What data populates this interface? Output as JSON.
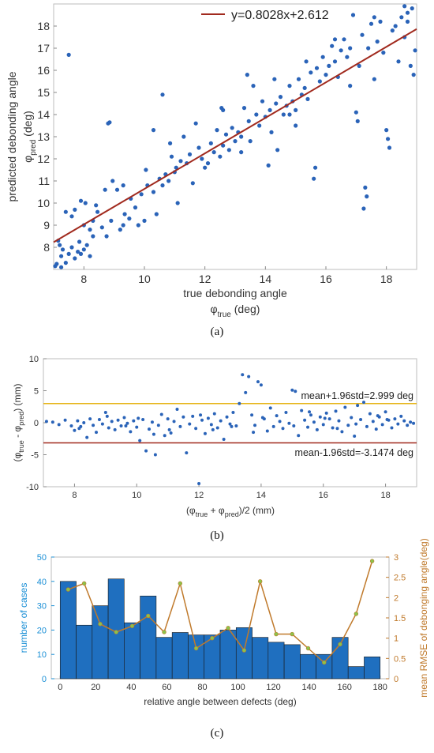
{
  "chart_data": [
    {
      "panel_label": "(a)",
      "type": "scatter",
      "xlabel": "true debonding angle",
      "xsymbol": "φ",
      "xsub": "true",
      "xunit": " (deg)",
      "ylabel": "predicted debonding angle",
      "ysymbol": "φ",
      "ysub": "pred",
      "yunit": " (deg)",
      "xlim": [
        7,
        19
      ],
      "ylim": [
        7,
        19
      ],
      "xticks": [
        "8",
        "10",
        "12",
        "14",
        "16",
        "18"
      ],
      "yticks": [
        "8",
        "9",
        "10",
        "11",
        "12",
        "13",
        "14",
        "15",
        "16",
        "17",
        "18"
      ],
      "legend_label": "y=0.8028x+2.612",
      "legend_position": "top-right",
      "fit": {
        "slope": 0.8028,
        "intercept": 2.612
      },
      "point_color": "#2a63b8",
      "line_color": "#a12a1e",
      "points": [
        [
          7.05,
          7.15
        ],
        [
          7.1,
          7.25
        ],
        [
          7.2,
          8.1
        ],
        [
          7.25,
          7.6
        ],
        [
          7.3,
          7.9
        ],
        [
          7.4,
          7.3
        ],
        [
          7.5,
          7.7
        ],
        [
          7.6,
          8.0
        ],
        [
          7.7,
          7.5
        ],
        [
          7.8,
          7.8
        ],
        [
          7.85,
          8.25
        ],
        [
          7.9,
          7.7
        ],
        [
          8.0,
          7.9
        ],
        [
          8.1,
          8.1
        ],
        [
          8.2,
          7.6
        ],
        [
          8.3,
          8.5
        ],
        [
          7.5,
          16.7
        ],
        [
          7.6,
          9.4
        ],
        [
          7.7,
          9.7
        ],
        [
          7.9,
          10.1
        ],
        [
          8.0,
          9.0
        ],
        [
          8.05,
          10.0
        ],
        [
          8.2,
          8.8
        ],
        [
          8.3,
          9.2
        ],
        [
          8.45,
          9.6
        ],
        [
          8.6,
          8.9
        ],
        [
          8.75,
          8.5
        ],
        [
          8.9,
          9.2
        ],
        [
          8.7,
          10.6
        ],
        [
          8.95,
          11.0
        ],
        [
          8.8,
          13.6
        ],
        [
          8.85,
          13.65
        ],
        [
          7.4,
          9.6
        ],
        [
          7.15,
          8.3
        ],
        [
          7.25,
          7.1
        ],
        [
          9.1,
          10.6
        ],
        [
          9.2,
          8.8
        ],
        [
          9.3,
          9.0
        ],
        [
          9.35,
          9.5
        ],
        [
          9.5,
          9.3
        ],
        [
          9.55,
          10.2
        ],
        [
          9.7,
          9.8
        ],
        [
          9.8,
          9.0
        ],
        [
          9.9,
          10.4
        ],
        [
          10.0,
          9.2
        ],
        [
          10.05,
          11.5
        ],
        [
          10.1,
          10.8
        ],
        [
          10.3,
          10.5
        ],
        [
          10.4,
          9.5
        ],
        [
          10.5,
          11.1
        ],
        [
          10.6,
          10.8
        ],
        [
          10.6,
          14.9
        ],
        [
          10.7,
          11.3
        ],
        [
          10.8,
          11.0
        ],
        [
          10.85,
          12.7
        ],
        [
          10.9,
          12.1
        ],
        [
          11.0,
          11.4
        ],
        [
          11.05,
          11.6
        ],
        [
          11.2,
          11.9
        ],
        [
          11.3,
          13.0
        ],
        [
          11.4,
          11.8
        ],
        [
          11.5,
          12.2
        ],
        [
          11.6,
          10.9
        ],
        [
          11.7,
          13.6
        ],
        [
          11.8,
          12.5
        ],
        [
          11.9,
          12.0
        ],
        [
          12.0,
          11.6
        ],
        [
          12.1,
          11.8
        ],
        [
          12.2,
          12.7
        ],
        [
          12.3,
          12.3
        ],
        [
          12.4,
          13.3
        ],
        [
          12.5,
          12.1
        ],
        [
          12.55,
          14.3
        ],
        [
          12.6,
          12.6
        ],
        [
          12.7,
          13.1
        ],
        [
          12.8,
          12.4
        ],
        [
          12.9,
          13.4
        ],
        [
          13.0,
          12.8
        ],
        [
          13.1,
          13.2
        ],
        [
          13.2,
          13.0
        ],
        [
          13.3,
          14.3
        ],
        [
          13.4,
          15.8
        ],
        [
          13.45,
          13.7
        ],
        [
          13.5,
          12.8
        ],
        [
          13.6,
          15.3
        ],
        [
          13.7,
          14.0
        ],
        [
          13.8,
          13.5
        ],
        [
          13.9,
          14.6
        ],
        [
          14.0,
          13.9
        ],
        [
          14.1,
          11.7
        ],
        [
          14.15,
          14.2
        ],
        [
          14.2,
          13.2
        ],
        [
          14.3,
          15.6
        ],
        [
          14.35,
          14.5
        ],
        [
          14.4,
          12.4
        ],
        [
          14.5,
          14.8
        ],
        [
          14.6,
          14.0
        ],
        [
          14.7,
          14.4
        ],
        [
          14.8,
          15.3
        ],
        [
          14.9,
          14.6
        ],
        [
          15.0,
          14.2
        ],
        [
          15.1,
          15.6
        ],
        [
          15.2,
          14.9
        ],
        [
          15.3,
          15.2
        ],
        [
          15.35,
          16.4
        ],
        [
          15.4,
          14.7
        ],
        [
          15.5,
          15.9
        ],
        [
          15.6,
          11.1
        ],
        [
          15.65,
          11.6
        ],
        [
          15.7,
          16.1
        ],
        [
          15.8,
          15.5
        ],
        [
          15.9,
          16.6
        ],
        [
          16.0,
          15.8
        ],
        [
          16.1,
          16.2
        ],
        [
          16.2,
          17.1
        ],
        [
          16.3,
          16.4
        ],
        [
          16.4,
          15.7
        ],
        [
          16.5,
          16.9
        ],
        [
          16.6,
          17.4
        ],
        [
          16.7,
          16.6
        ],
        [
          16.8,
          17.0
        ],
        [
          16.9,
          18.5
        ],
        [
          17.0,
          14.1
        ],
        [
          17.05,
          13.7
        ],
        [
          17.1,
          16.2
        ],
        [
          17.2,
          17.6
        ],
        [
          17.3,
          10.7
        ],
        [
          17.35,
          10.3
        ],
        [
          17.25,
          9.75
        ],
        [
          17.4,
          17.0
        ],
        [
          17.5,
          18.1
        ],
        [
          17.6,
          15.6
        ],
        [
          17.7,
          17.3
        ],
        [
          17.8,
          18.2
        ],
        [
          17.9,
          16.8
        ],
        [
          18.0,
          13.3
        ],
        [
          18.05,
          12.9
        ],
        [
          18.1,
          12.5
        ],
        [
          18.2,
          17.8
        ],
        [
          18.3,
          18.0
        ],
        [
          18.4,
          16.4
        ],
        [
          18.5,
          18.4
        ],
        [
          18.6,
          17.5
        ],
        [
          18.7,
          18.2
        ],
        [
          18.8,
          16.2
        ],
        [
          18.85,
          18.8
        ],
        [
          18.9,
          15.8
        ],
        [
          18.95,
          16.9
        ],
        [
          18.7,
          18.6
        ],
        [
          18.6,
          18.9
        ],
        [
          16.3,
          17.4
        ],
        [
          15.0,
          13.5
        ],
        [
          13.2,
          12.3
        ],
        [
          11.1,
          10.0
        ],
        [
          12.6,
          14.2
        ],
        [
          14.8,
          14.0
        ],
        [
          16.8,
          15.3
        ],
        [
          10.3,
          13.3
        ],
        [
          9.3,
          10.8
        ],
        [
          17.6,
          18.4
        ],
        [
          8.4,
          9.9
        ]
      ]
    },
    {
      "panel_label": "(b)",
      "type": "scatter",
      "xlabel": "(φ",
      "xsub1": "true",
      "xmid": " + φ",
      "xsub2": "pred",
      "xend": ")/2 (mm)",
      "ylabel": "(φ",
      "ysub1": "true",
      "ymid": " - φ",
      "ysub2": "pred",
      "yend": ") (mm)",
      "xlim": [
        7,
        19
      ],
      "ylim": [
        -10,
        10
      ],
      "xticks": [
        "8",
        "10",
        "12",
        "14",
        "16",
        "18"
      ],
      "yticks": [
        "-10",
        "-5",
        "0",
        "5",
        "10"
      ],
      "upper_line": {
        "value": 2.999,
        "label": "mean+1.96std=2.999 deg",
        "color": "#e6b418"
      },
      "lower_line": {
        "value": -3.1474,
        "label": "mean-1.96std=-3.1474 deg",
        "color": "#a12a1e"
      },
      "point_color": "#2a63b8",
      "points": [
        [
          7.1,
          0.2
        ],
        [
          7.3,
          0.1
        ],
        [
          7.5,
          -0.3
        ],
        [
          7.7,
          0.4
        ],
        [
          7.9,
          -0.5
        ],
        [
          8.0,
          -1.2
        ],
        [
          8.1,
          0.3
        ],
        [
          8.2,
          -0.6
        ],
        [
          8.3,
          0.0
        ],
        [
          8.4,
          -2.3
        ],
        [
          8.5,
          0.6
        ],
        [
          8.6,
          -0.4
        ],
        [
          8.7,
          -1.5
        ],
        [
          8.8,
          0.5
        ],
        [
          8.9,
          -0.2
        ],
        [
          9.0,
          1.6
        ],
        [
          9.1,
          -0.8
        ],
        [
          9.2,
          0.2
        ],
        [
          9.3,
          -1.1
        ],
        [
          9.4,
          0.4
        ],
        [
          9.5,
          -0.5
        ],
        [
          9.6,
          0.8
        ],
        [
          9.7,
          -0.1
        ],
        [
          9.8,
          -1.4
        ],
        [
          9.9,
          0.3
        ],
        [
          10.0,
          -0.7
        ],
        [
          10.1,
          -2.8
        ],
        [
          10.2,
          0.5
        ],
        [
          10.3,
          -4.4
        ],
        [
          10.4,
          -1.0
        ],
        [
          10.5,
          0.1
        ],
        [
          10.6,
          -5.0
        ],
        [
          10.7,
          -0.4
        ],
        [
          10.8,
          1.3
        ],
        [
          10.9,
          -2.0
        ],
        [
          11.0,
          0.6
        ],
        [
          11.1,
          -1.6
        ],
        [
          11.2,
          0.2
        ],
        [
          11.3,
          2.1
        ],
        [
          11.4,
          -0.6
        ],
        [
          11.5,
          0.9
        ],
        [
          11.6,
          -4.7
        ],
        [
          11.7,
          -0.2
        ],
        [
          11.8,
          1.0
        ],
        [
          11.9,
          -0.9
        ],
        [
          12.0,
          -9.5
        ],
        [
          12.1,
          0.4
        ],
        [
          12.2,
          -1.7
        ],
        [
          12.3,
          0.7
        ],
        [
          12.4,
          -0.3
        ],
        [
          12.5,
          1.4
        ],
        [
          12.6,
          -0.8
        ],
        [
          12.7,
          0.3
        ],
        [
          12.8,
          -2.6
        ],
        [
          12.9,
          0.9
        ],
        [
          13.0,
          -0.2
        ],
        [
          13.1,
          1.6
        ],
        [
          13.2,
          -0.5
        ],
        [
          13.3,
          3.0
        ],
        [
          13.4,
          7.5
        ],
        [
          13.5,
          4.7
        ],
        [
          13.6,
          7.2
        ],
        [
          13.7,
          1.2
        ],
        [
          13.8,
          -0.4
        ],
        [
          13.9,
          6.4
        ],
        [
          14.0,
          5.9
        ],
        [
          14.1,
          0.6
        ],
        [
          14.2,
          -1.3
        ],
        [
          14.3,
          2.3
        ],
        [
          14.4,
          -0.6
        ],
        [
          14.5,
          1.1
        ],
        [
          14.6,
          0.2
        ],
        [
          14.7,
          -0.9
        ],
        [
          14.8,
          1.6
        ],
        [
          14.9,
          -0.1
        ],
        [
          15.0,
          5.1
        ],
        [
          15.1,
          4.9
        ],
        [
          15.2,
          -2.0
        ],
        [
          15.3,
          1.9
        ],
        [
          15.4,
          0.4
        ],
        [
          15.5,
          -0.7
        ],
        [
          15.6,
          1.2
        ],
        [
          15.7,
          0.1
        ],
        [
          15.8,
          -1.1
        ],
        [
          15.9,
          0.9
        ],
        [
          16.0,
          -0.3
        ],
        [
          16.1,
          1.5
        ],
        [
          16.2,
          0.6
        ],
        [
          16.3,
          -0.8
        ],
        [
          16.4,
          1.8
        ],
        [
          16.5,
          0.3
        ],
        [
          16.6,
          -1.4
        ],
        [
          16.7,
          2.4
        ],
        [
          16.8,
          -0.4
        ],
        [
          16.9,
          0.8
        ],
        [
          17.0,
          -2.1
        ],
        [
          17.1,
          2.7
        ],
        [
          17.2,
          0.5
        ],
        [
          17.3,
          3.2
        ],
        [
          17.4,
          -0.6
        ],
        [
          17.5,
          1.4
        ],
        [
          17.6,
          0.2
        ],
        [
          17.7,
          -1.0
        ],
        [
          17.8,
          0.9
        ],
        [
          17.9,
          -0.3
        ],
        [
          18.0,
          1.7
        ],
        [
          18.1,
          0.4
        ],
        [
          18.2,
          -0.8
        ],
        [
          18.3,
          0.6
        ],
        [
          18.4,
          -0.2
        ],
        [
          18.5,
          1.0
        ],
        [
          18.6,
          0.3
        ],
        [
          18.7,
          -0.4
        ],
        [
          18.8,
          0.1
        ],
        [
          18.9,
          -0.1
        ],
        [
          8.15,
          -0.9
        ],
        [
          9.05,
          1.0
        ],
        [
          10.05,
          0.7
        ],
        [
          11.05,
          -1.1
        ],
        [
          12.05,
          1.2
        ],
        [
          13.05,
          -0.6
        ],
        [
          14.05,
          0.8
        ],
        [
          15.05,
          -0.5
        ],
        [
          16.05,
          0.7
        ],
        [
          17.05,
          -0.2
        ],
        [
          18.05,
          0.5
        ],
        [
          9.65,
          -0.5
        ],
        [
          10.55,
          -1.8
        ],
        [
          12.45,
          -1.1
        ],
        [
          13.75,
          -1.5
        ],
        [
          15.55,
          1.7
        ],
        [
          16.45,
          -0.9
        ],
        [
          17.75,
          1.1
        ]
      ]
    },
    {
      "panel_label": "(c)",
      "type": "bar",
      "xlabel": "relative angle between defects (deg)",
      "ylabel": "number of cases",
      "y2label": "mean RMSE of debonging angle(deg)",
      "xlim": [
        -5,
        185
      ],
      "ylim": [
        0,
        50
      ],
      "y2lim": [
        0,
        3
      ],
      "xticks": [
        "0",
        "20",
        "40",
        "60",
        "80",
        "100",
        "120",
        "140",
        "160",
        "180"
      ],
      "yticks": [
        "0",
        "10",
        "20",
        "30",
        "40",
        "50"
      ],
      "y2ticks": [
        "0",
        "0.5",
        "1",
        "1.5",
        "2",
        "2.5",
        "3"
      ],
      "bin_width": 9,
      "bin_centers": [
        4.5,
        13.5,
        22.5,
        31.5,
        40.5,
        49.5,
        58.5,
        67.5,
        76.5,
        85.5,
        94.5,
        103.5,
        112.5,
        121.5,
        130.5,
        139.5,
        148.5,
        157.5,
        166.5,
        175.5
      ],
      "values": [
        40,
        22,
        30,
        41,
        23,
        34,
        17,
        19,
        18,
        18,
        20,
        21,
        17,
        15,
        14,
        10,
        10,
        17,
        5,
        9
      ],
      "rmse": [
        2.2,
        2.35,
        1.35,
        1.15,
        1.3,
        1.55,
        1.15,
        2.35,
        0.75,
        1.0,
        1.25,
        0.7,
        2.4,
        1.1,
        1.1,
        0.75,
        0.4,
        0.85,
        1.6,
        2.9
      ],
      "bar_color": "#1f6fbf",
      "left_axis_color": "#1a8fd6",
      "right_axis_color": "#c07a2c",
      "line_color": "#c07a2c",
      "marker_color": "#8bc34a"
    }
  ]
}
